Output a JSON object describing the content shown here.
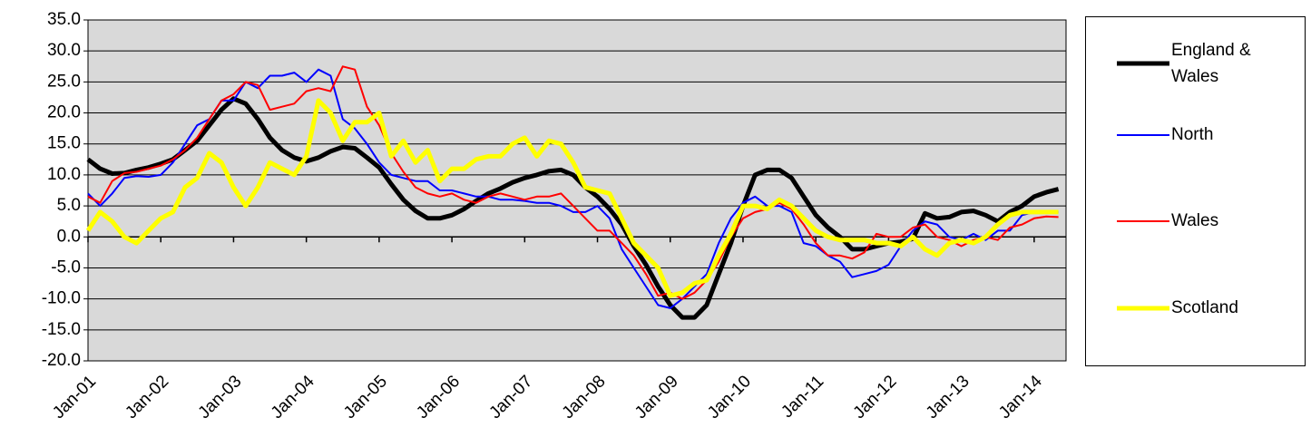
{
  "chart_data": {
    "type": "line",
    "categories": [
      "Jan-01",
      null,
      null,
      null,
      null,
      null,
      "Jan-02",
      null,
      null,
      null,
      null,
      null,
      "Jan-03",
      null,
      null,
      null,
      null,
      null,
      "Jan-04",
      null,
      null,
      null,
      null,
      null,
      "Jan-05",
      null,
      null,
      null,
      null,
      null,
      "Jan-06",
      null,
      null,
      null,
      null,
      null,
      "Jan-07",
      null,
      null,
      null,
      null,
      null,
      "Jan-08",
      null,
      null,
      null,
      null,
      null,
      "Jan-09",
      null,
      null,
      null,
      null,
      null,
      "Jan-10",
      null,
      null,
      null,
      null,
      null,
      "Jan-11",
      null,
      null,
      null,
      null,
      null,
      "Jan-12",
      null,
      null,
      null,
      null,
      null,
      "Jan-13",
      null,
      null,
      null,
      null,
      null,
      "Jan-14",
      null,
      null
    ],
    "ylim": [
      -20,
      35
    ],
    "yticks": [
      {
        "value": -20,
        "label": "-20.0"
      },
      {
        "value": -15,
        "label": "-15.0"
      },
      {
        "value": -10,
        "label": "-10.0"
      },
      {
        "value": -5,
        "label": "-5.0"
      },
      {
        "value": 0,
        "label": "0.0"
      },
      {
        "value": 5,
        "label": "5.0"
      },
      {
        "value": 10,
        "label": "10.0"
      },
      {
        "value": 15,
        "label": "15.0"
      },
      {
        "value": 20,
        "label": "20.0"
      },
      {
        "value": 25,
        "label": "25.0"
      },
      {
        "value": 30,
        "label": "30.0"
      },
      {
        "value": 35,
        "label": "35.0"
      }
    ],
    "grid": true,
    "legend_position": "right",
    "series": [
      {
        "name": "England & Wales",
        "color": "#000000",
        "line_width": 5,
        "values": [
          12.5,
          11,
          10.2,
          10.3,
          10.8,
          11.2,
          11.8,
          12.5,
          14,
          15.5,
          18,
          20.5,
          22.3,
          21.5,
          19,
          16,
          14,
          12.8,
          12.2,
          12.8,
          13.8,
          14.5,
          14.3,
          12.8,
          11.2,
          8.5,
          6,
          4.2,
          3,
          3,
          3.5,
          4.5,
          5.8,
          7,
          7.8,
          8.8,
          9.5,
          10,
          10.6,
          10.8,
          10,
          8,
          6.5,
          4.5,
          2,
          -1.5,
          -4.5,
          -8,
          -11,
          -13,
          -13,
          -11,
          -6,
          -1,
          5,
          10,
          10.8,
          10.8,
          9.5,
          6.5,
          3.5,
          1.5,
          0,
          -2,
          -2,
          -1.5,
          -1,
          -0.8,
          -0.3,
          3.8,
          3,
          3.2,
          4,
          4.2,
          3.5,
          2.5,
          4,
          5,
          6.5,
          7.2,
          7.7
        ]
      },
      {
        "name": "North",
        "color": "#0000ff",
        "line_width": 2,
        "values": [
          7,
          5,
          7,
          9.5,
          9.8,
          9.7,
          10,
          12,
          15,
          18,
          19,
          22,
          22,
          25,
          24,
          26,
          26,
          26.5,
          25,
          27,
          26,
          19,
          17.5,
          15,
          12,
          10,
          9.5,
          9,
          9,
          7.5,
          7.5,
          7,
          6.5,
          6.5,
          6,
          6,
          5.8,
          5.5,
          5.5,
          5,
          4,
          4,
          5,
          3,
          -2,
          -5,
          -8,
          -11,
          -11.5,
          -10,
          -8,
          -6,
          -1,
          3,
          5.5,
          6.5,
          5,
          5,
          4,
          -1,
          -1.5,
          -3,
          -4,
          -6.5,
          -6,
          -5.5,
          -4.5,
          -1.5,
          1,
          2.5,
          2,
          0,
          -0.5,
          0.5,
          -0.5,
          1,
          1,
          3.5,
          4,
          4,
          4
        ]
      },
      {
        "name": "Wales",
        "color": "#ff0000",
        "line_width": 2,
        "values": [
          6.5,
          5.5,
          9,
          10.3,
          10.5,
          11,
          11.5,
          12.5,
          14,
          16,
          19,
          22,
          23,
          25,
          24.5,
          20.5,
          21,
          21.5,
          23.5,
          24,
          23.5,
          27.5,
          27,
          21,
          18,
          13.5,
          10.5,
          8,
          7,
          6.5,
          7,
          6,
          5.5,
          6.5,
          7,
          6.5,
          6,
          6.5,
          6.5,
          7,
          5,
          3,
          1,
          1,
          -1,
          -3,
          -6,
          -9.5,
          -9,
          -10,
          -9,
          -7,
          -4,
          0,
          3,
          4,
          4.5,
          5.5,
          4.5,
          2,
          -1,
          -3,
          -3,
          -3.5,
          -2.5,
          0.5,
          0,
          0,
          1.5,
          2,
          0,
          -0.5,
          -1.5,
          -0.5,
          0,
          -0.5,
          1.5,
          2,
          3,
          3.3,
          3.2
        ]
      },
      {
        "name": "Scotland",
        "color": "#ffff00",
        "line_width": 5,
        "values": [
          1,
          4,
          2.5,
          0,
          -1,
          1,
          3,
          4,
          8,
          9.5,
          13.5,
          12,
          8,
          5,
          8,
          12,
          11,
          10,
          13,
          22,
          20,
          15.5,
          18.5,
          18.5,
          20,
          13,
          15.5,
          12,
          14,
          9,
          11,
          11,
          12.5,
          13,
          13,
          15,
          16,
          13,
          15.5,
          15,
          12,
          8,
          7.5,
          7,
          3,
          -1,
          -3,
          -5,
          -9.5,
          -9,
          -7.5,
          -7,
          -3,
          0.5,
          5,
          5,
          4.5,
          6,
          5,
          3,
          1,
          0,
          -0.5,
          -0.5,
          -0.5,
          -1,
          -1,
          -1.5,
          0,
          -2,
          -3,
          -1,
          -0.5,
          -1,
          0,
          2,
          3.5,
          4,
          4,
          4,
          4
        ]
      }
    ]
  }
}
